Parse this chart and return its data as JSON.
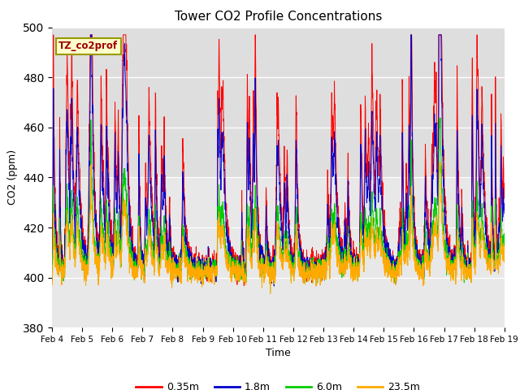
{
  "title": "Tower CO2 Profile Concentrations",
  "xlabel": "Time",
  "ylabel": "CO2 (ppm)",
  "ylim": [
    380,
    500
  ],
  "yticks": [
    380,
    400,
    420,
    440,
    460,
    480,
    500
  ],
  "label_text": "TZ_co2prof",
  "xtick_labels": [
    "Feb 4",
    "Feb 5",
    "Feb 6",
    "Feb 7",
    "Feb 8",
    "Feb 9",
    "Feb 10",
    "Feb 11",
    "Feb 12",
    "Feb 13",
    "Feb 14",
    "Feb 15",
    "Feb 16",
    "Feb 17",
    "Feb 18",
    "Feb 19"
  ],
  "line_colors": [
    "#ff0000",
    "#0000cc",
    "#00cc00",
    "#ffaa00"
  ],
  "line_labels": [
    "0.35m",
    "1.8m",
    "6.0m",
    "23.5m"
  ],
  "plot_bg": "#e8e8e8",
  "band_lo": 440,
  "band_hi": 500,
  "band_color": "#d0d0d0",
  "seed": 12345
}
